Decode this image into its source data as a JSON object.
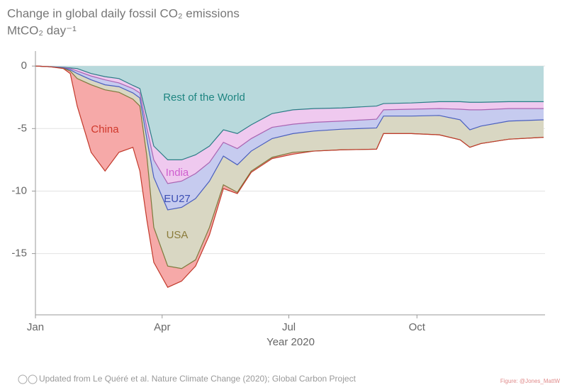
{
  "chart_data": {
    "type": "stacked-area",
    "title": "Change in global daily fossil CO₂ emissions",
    "subtitle": "MtCO₂ day⁻¹",
    "x_label": "Year 2020",
    "source": "Updated from Le Quéré et al. Nature Climate Change (2020); Global Carbon Project",
    "credit": "Figure: @Jones_MattW",
    "x": [
      0,
      10,
      20,
      25,
      30,
      40,
      50,
      60,
      70,
      75,
      80,
      85,
      95,
      105,
      115,
      125,
      135,
      145,
      155,
      170,
      185,
      200,
      220,
      245,
      250,
      270,
      290,
      305,
      312,
      320,
      340,
      365
    ],
    "xlim": [
      0,
      366
    ],
    "xticks": [
      {
        "value": 0,
        "label": "Jan"
      },
      {
        "value": 91,
        "label": "Apr"
      },
      {
        "value": 182,
        "label": "Jul"
      },
      {
        "value": 274,
        "label": "Oct"
      }
    ],
    "ylim": [
      -19.9,
      1.2
    ],
    "yticks": [
      0,
      -5,
      -10,
      -15
    ],
    "grid": true,
    "series": [
      {
        "name": "Rest of the World",
        "color": "#b8d9dc",
        "line": "#2b7c86",
        "text": "#1e8581",
        "values": [
          0,
          -0.05,
          -0.1,
          -0.15,
          -0.2,
          -0.6,
          -0.85,
          -1.0,
          -1.55,
          -1.8,
          -4.1,
          -6.4,
          -7.5,
          -7.5,
          -7.1,
          -6.4,
          -5.1,
          -5.4,
          -4.7,
          -3.8,
          -3.5,
          -3.4,
          -3.35,
          -3.2,
          -3.0,
          -2.95,
          -2.85,
          -2.85,
          -2.9,
          -2.9,
          -2.85,
          -2.85
        ]
      },
      {
        "name": "India",
        "color": "#efc9ef",
        "line": "#a964b2",
        "text": "#cf5fcf",
        "values": [
          0,
          0,
          -0.02,
          -0.05,
          -0.2,
          -0.2,
          -0.25,
          -0.35,
          -0.25,
          -0.35,
          -0.85,
          -1.1,
          -1.9,
          -1.7,
          -1.5,
          -1.3,
          -1.0,
          -1.2,
          -1.1,
          -1.1,
          -1.15,
          -1.1,
          -1.05,
          -1.05,
          -0.5,
          -0.5,
          -0.55,
          -0.6,
          -0.6,
          -0.6,
          -0.55,
          -0.55
        ]
      },
      {
        "name": "EU27",
        "color": "#c6cbef",
        "line": "#4a5fbf",
        "text": "#3c4fb3",
        "values": [
          0,
          0,
          -0.02,
          -0.1,
          -0.2,
          -0.3,
          -0.4,
          -0.3,
          -0.35,
          -0.4,
          -0.85,
          -1.4,
          -2.1,
          -2.1,
          -2.0,
          -1.5,
          -1.1,
          -1.3,
          -1.0,
          -0.9,
          -0.75,
          -0.7,
          -0.65,
          -0.7,
          -0.5,
          -0.55,
          -0.55,
          -0.85,
          -1.6,
          -1.3,
          -1.0,
          -0.9
        ]
      },
      {
        "name": "USA",
        "color": "#d9d7c3",
        "line": "#7c7a3c",
        "text": "#8a7b3a",
        "values": [
          0,
          0,
          -0.03,
          -0.1,
          -0.4,
          -0.4,
          -0.4,
          -0.45,
          -0.5,
          -0.65,
          -1.4,
          -4.0,
          -4.5,
          -4.9,
          -4.9,
          -3.7,
          -2.3,
          -2.2,
          -1.6,
          -1.5,
          -1.5,
          -1.6,
          -1.65,
          -1.7,
          -1.4,
          -1.4,
          -1.55,
          -1.6,
          -1.4,
          -1.4,
          -1.45,
          -1.4
        ]
      },
      {
        "name": "China",
        "color": "#f6a9a8",
        "line": "#c23a2c",
        "text": "#d0372a",
        "values": [
          0,
          0,
          -0.03,
          -0.2,
          -2.2,
          -5.4,
          -6.5,
          -4.8,
          -3.85,
          -5.2,
          -5.1,
          -2.8,
          -1.7,
          -1.0,
          -0.5,
          -0.6,
          -0.3,
          -0.1,
          -0.1,
          -0.1,
          -0.15,
          0,
          0,
          0,
          0,
          0,
          0,
          0,
          0,
          0,
          0,
          0
        ]
      }
    ]
  }
}
